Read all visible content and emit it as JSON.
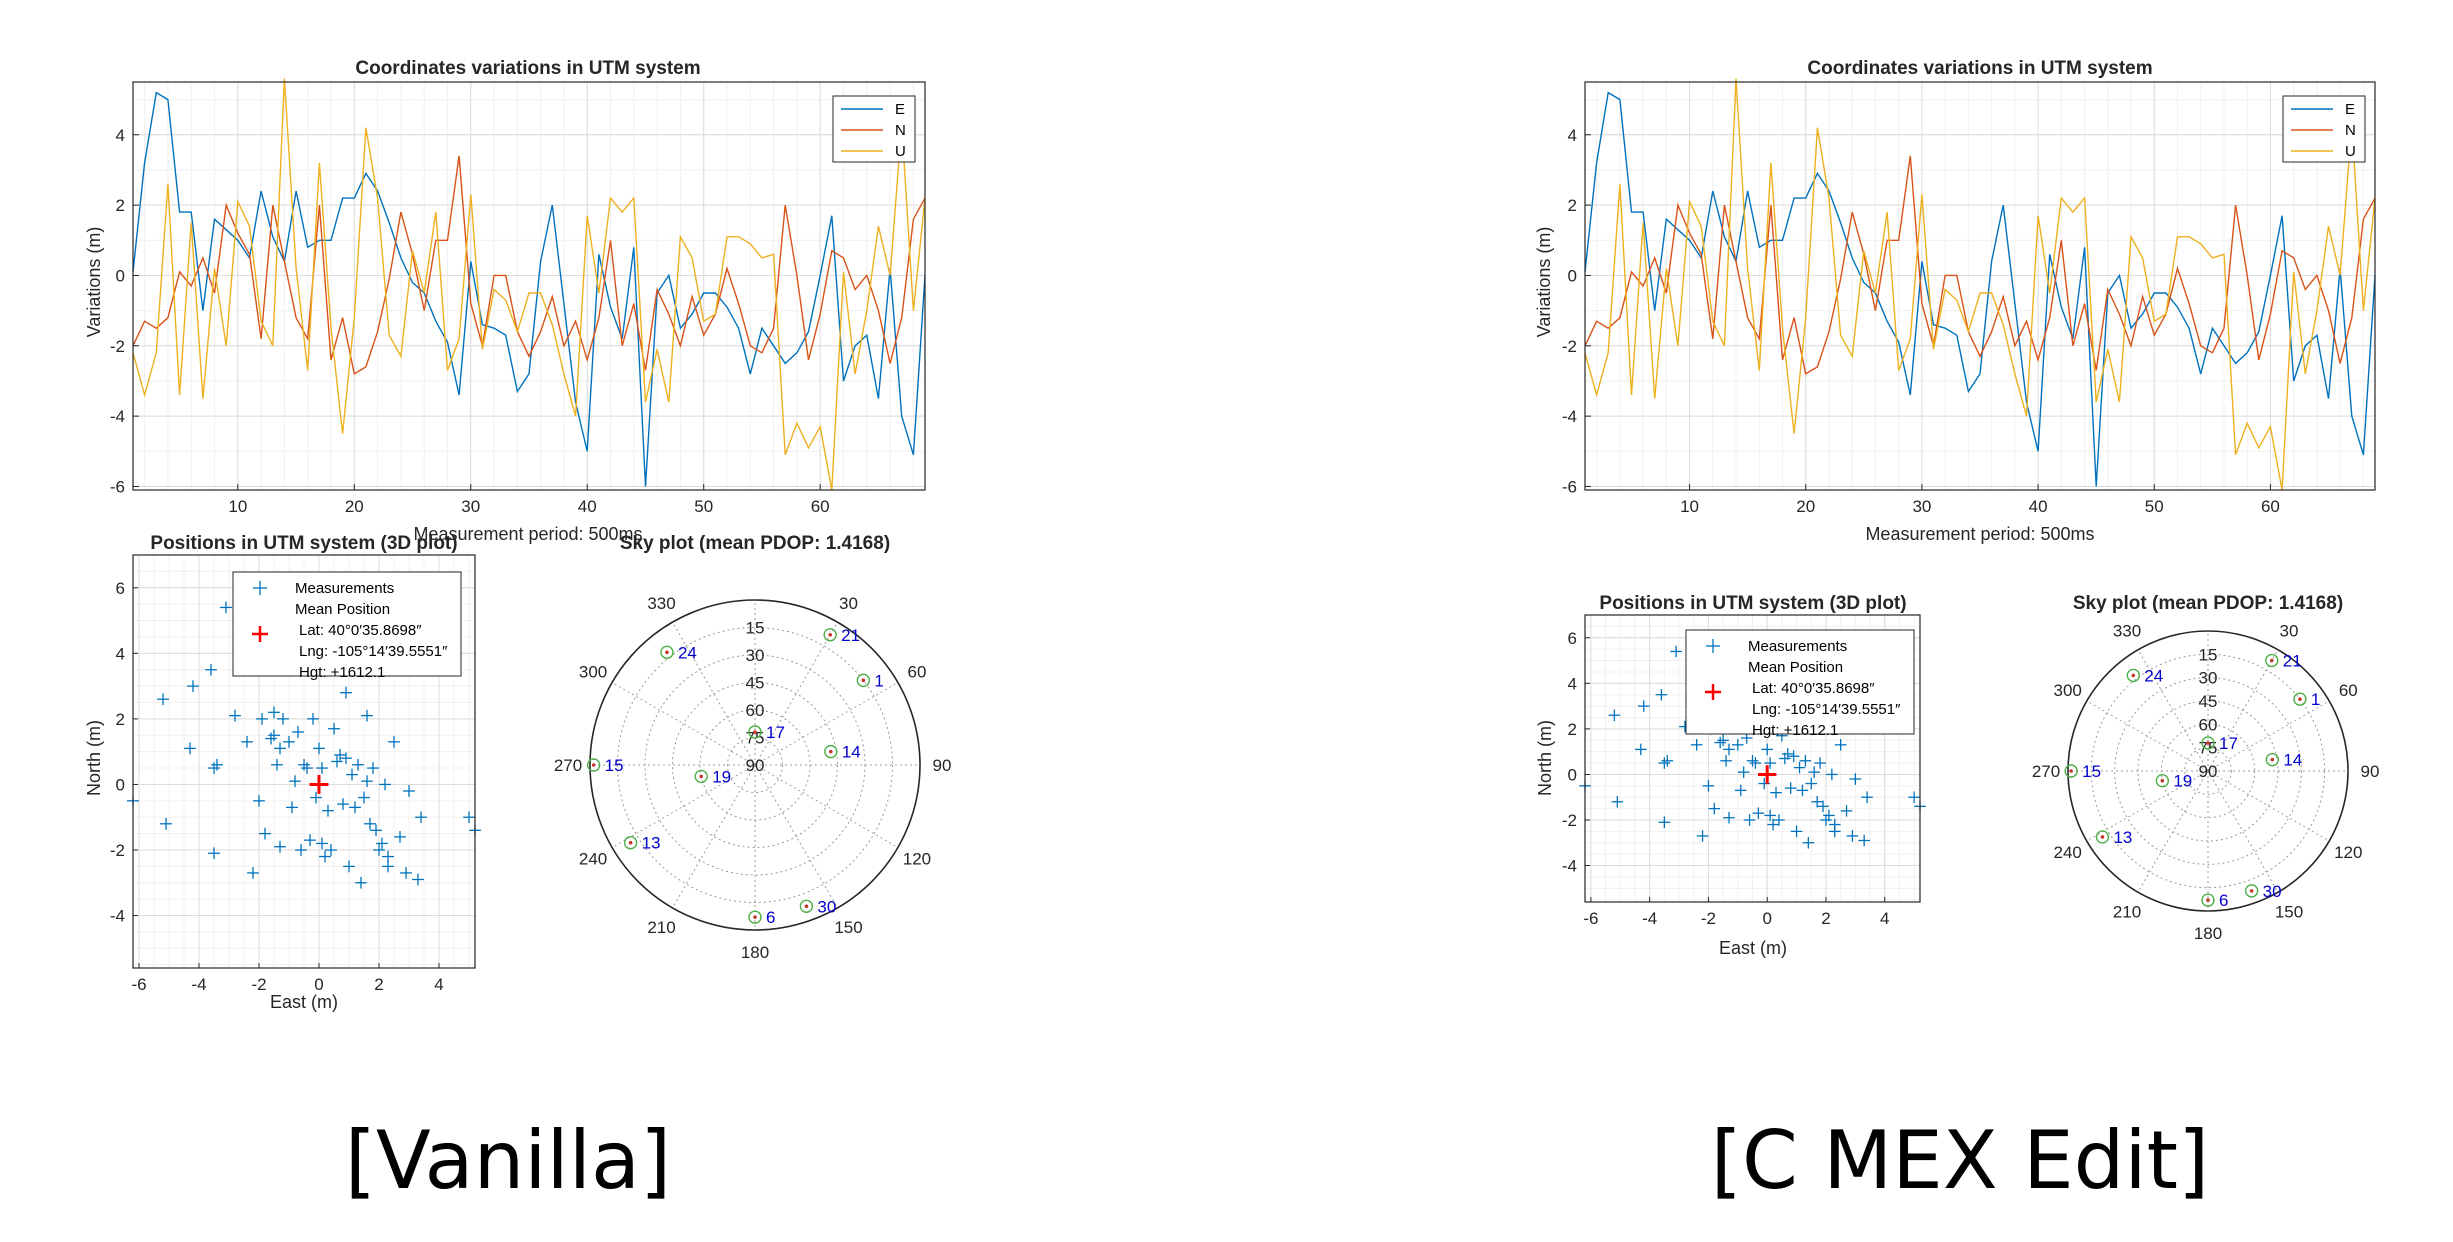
{
  "captions": {
    "left": "[Vanilla]",
    "right": "[C MEX Edit]"
  },
  "colors": {
    "E": "#0072BD",
    "N": "#D95319",
    "U": "#EDB120",
    "mean": "#ff0000",
    "meas": "#0072BD",
    "satlab": "#0000cc"
  },
  "chart_data": [
    {
      "type": "line",
      "title": "Coordinates variations in UTM system",
      "xlabel": "Measurement period: 500ms",
      "ylabel": "Variations (m)",
      "xlim": [
        1,
        69
      ],
      "ylim": [
        -6.1,
        5.5
      ],
      "xticks": [
        10,
        20,
        30,
        40,
        50,
        60
      ],
      "yticks": [
        -6,
        -4,
        -2,
        0,
        2,
        4
      ],
      "legend": [
        "E",
        "N",
        "U"
      ],
      "legend_position": "top-right",
      "series": [
        {
          "name": "E",
          "values": [
            0.1,
            3.2,
            5.2,
            5.0,
            1.8,
            1.8,
            -1.0,
            1.6,
            1.3,
            1.0,
            0.5,
            2.4,
            1.1,
            0.4,
            2.4,
            0.8,
            1.0,
            1.0,
            2.2,
            2.2,
            2.9,
            2.4,
            1.5,
            0.5,
            -0.2,
            -0.5,
            -1.3,
            -1.9,
            -3.4,
            0.4,
            -1.4,
            -1.5,
            -1.7,
            -3.3,
            -2.8,
            0.4,
            2.0,
            -0.8,
            -3.6,
            -5.0,
            0.6,
            -0.9,
            -1.8,
            0.8,
            -6.0,
            -0.5,
            0.0,
            -1.5,
            -1.1,
            -0.5,
            -0.5,
            -0.9,
            -1.5,
            -2.8,
            -1.5,
            -2.0,
            -2.5,
            -2.2,
            -1.6,
            0.0,
            1.7,
            -3.0,
            -2.0,
            -1.7,
            -3.5,
            0.2,
            -4.0,
            -5.1,
            0.0
          ]
        },
        {
          "name": "N",
          "values": [
            -2.0,
            -1.3,
            -1.5,
            -1.2,
            0.1,
            -0.3,
            0.5,
            -0.5,
            2.0,
            1.2,
            0.6,
            -1.8,
            2.0,
            0.4,
            -1.2,
            -1.8,
            2.0,
            -2.4,
            -1.2,
            -2.8,
            -2.6,
            -1.6,
            -0.1,
            1.8,
            0.6,
            -1.0,
            1.0,
            1.0,
            3.4,
            -0.8,
            -2.0,
            0.0,
            0.0,
            -1.6,
            -2.3,
            -1.6,
            -0.6,
            -2.0,
            -1.3,
            -2.4,
            -1.2,
            1.0,
            -2.0,
            -0.8,
            -2.7,
            -0.4,
            -1.1,
            -2.0,
            -0.6,
            -1.7,
            -1.1,
            0.2,
            -0.8,
            -2.0,
            -2.2,
            -1.5,
            2.0,
            0.0,
            -2.4,
            -1.1,
            0.7,
            0.5,
            -0.4,
            0.0,
            -1.0,
            -2.5,
            -1.2,
            1.6,
            2.2
          ]
        },
        {
          "name": "U",
          "values": [
            -2.2,
            -3.4,
            -2.2,
            2.6,
            -3.4,
            1.5,
            -3.5,
            0.2,
            -2.0,
            2.1,
            1.4,
            -1.3,
            -2.0,
            5.6,
            0.2,
            -2.7,
            3.2,
            -1.5,
            -4.5,
            -1.2,
            4.2,
            2.2,
            -1.7,
            -2.3,
            0.7,
            -0.5,
            1.8,
            -2.7,
            -1.8,
            2.3,
            -2.1,
            -0.4,
            -0.7,
            -1.6,
            -0.5,
            -0.5,
            -1.4,
            -2.8,
            -4.0,
            1.7,
            -0.5,
            2.2,
            1.8,
            2.2,
            -3.6,
            -2.1,
            -3.6,
            1.1,
            0.5,
            -1.3,
            -1.1,
            1.1,
            1.1,
            0.9,
            0.5,
            0.6,
            -5.1,
            -4.2,
            -4.9,
            -4.3,
            -6.1,
            0.1,
            -2.8,
            -1.0,
            1.4,
            0.0,
            4.3,
            -1.0,
            2.2
          ]
        }
      ]
    },
    {
      "type": "scatter",
      "title": "Positions in UTM system (3D plot)",
      "xlabel": "East (m)",
      "ylabel": "North (m)",
      "xlim": [
        -6.2,
        5.2
      ],
      "ylim": [
        -5.6,
        7.0
      ],
      "xticks": [
        -6,
        -4,
        -2,
        0,
        2,
        4
      ],
      "yticks": [
        -4,
        -2,
        0,
        2,
        4,
        6
      ],
      "legend": {
        "measurements": "Measurements",
        "mean_heading": "Mean Position",
        "lat": "Lat: 40°0′35.8698″",
        "lng": "Lng: -105°14′39.5551″",
        "hgt": "Hgt: +1612.1"
      },
      "mean_position": {
        "x": 0.0,
        "y": 0.0
      },
      "points": [
        [
          -6.2,
          -0.5
        ],
        [
          -5.2,
          2.6
        ],
        [
          -5.1,
          -1.2
        ],
        [
          -4.3,
          1.1
        ],
        [
          -4.2,
          3.0
        ],
        [
          -3.6,
          3.5
        ],
        [
          -3.5,
          -2.1
        ],
        [
          -3.5,
          0.5
        ],
        [
          -3.4,
          0.6
        ],
        [
          -3.1,
          5.4
        ],
        [
          -2.8,
          2.1
        ],
        [
          -2.4,
          1.3
        ],
        [
          -2.2,
          -2.7
        ],
        [
          -2.0,
          -0.5
        ],
        [
          -1.9,
          2.0
        ],
        [
          -1.8,
          -1.5
        ],
        [
          -1.6,
          1.4
        ],
        [
          -1.5,
          2.2
        ],
        [
          -1.5,
          1.5
        ],
        [
          -1.4,
          0.6
        ],
        [
          -1.3,
          1.1
        ],
        [
          -1.3,
          -1.9
        ],
        [
          -1.2,
          2.0
        ],
        [
          -1.0,
          1.3
        ],
        [
          -0.9,
          -0.7
        ],
        [
          -0.8,
          0.1
        ],
        [
          -0.7,
          1.6
        ],
        [
          -0.6,
          -2.0
        ],
        [
          -0.5,
          0.6
        ],
        [
          -0.4,
          0.5
        ],
        [
          -0.3,
          -1.7
        ],
        [
          -0.2,
          2.0
        ],
        [
          -0.1,
          -0.4
        ],
        [
          0.0,
          1.1
        ],
        [
          0.1,
          -1.8
        ],
        [
          0.1,
          0.5
        ],
        [
          0.2,
          -2.2
        ],
        [
          0.3,
          -0.8
        ],
        [
          0.4,
          -2.0
        ],
        [
          0.5,
          1.7
        ],
        [
          0.6,
          0.7
        ],
        [
          0.7,
          0.9
        ],
        [
          0.8,
          -0.6
        ],
        [
          0.9,
          2.8
        ],
        [
          0.9,
          0.8
        ],
        [
          1.0,
          -2.5
        ],
        [
          1.1,
          0.3
        ],
        [
          1.2,
          -0.7
        ],
        [
          1.3,
          0.6
        ],
        [
          1.4,
          -3.0
        ],
        [
          1.5,
          -0.4
        ],
        [
          1.6,
          0.1
        ],
        [
          1.6,
          2.1
        ],
        [
          1.7,
          -1.2
        ],
        [
          1.8,
          0.5
        ],
        [
          1.9,
          -1.4
        ],
        [
          2.0,
          -2.0
        ],
        [
          2.1,
          -1.8
        ],
        [
          2.2,
          0.0
        ],
        [
          2.3,
          -2.2
        ],
        [
          2.3,
          -2.5
        ],
        [
          2.5,
          1.3
        ],
        [
          2.7,
          -1.6
        ],
        [
          2.9,
          -2.7
        ],
        [
          3.0,
          -0.2
        ],
        [
          3.3,
          -2.9
        ],
        [
          3.4,
          -1.0
        ],
        [
          5.0,
          -1.0
        ],
        [
          5.2,
          -1.4
        ]
      ]
    },
    {
      "type": "scatter",
      "subtype": "polar",
      "title": "Sky plot (mean PDOP: 1.4168)",
      "azimuth_ticks": [
        "30",
        "60",
        "90",
        "120",
        "150",
        "180",
        "210",
        "240",
        "270",
        "300",
        "330"
      ],
      "elevation_ticks": [
        "15",
        "30",
        "45",
        "60",
        "75",
        "90"
      ],
      "satellites": [
        {
          "id": "21",
          "az": 30,
          "el": 8
        },
        {
          "id": "1",
          "az": 52,
          "el": 15
        },
        {
          "id": "24",
          "az": 322,
          "el": 12
        },
        {
          "id": "17",
          "az": 0,
          "el": 72
        },
        {
          "id": "14",
          "az": 80,
          "el": 48
        },
        {
          "id": "15",
          "az": 270,
          "el": 2
        },
        {
          "id": "19",
          "az": 258,
          "el": 60
        },
        {
          "id": "13",
          "az": 238,
          "el": 10
        },
        {
          "id": "6",
          "az": 180,
          "el": 7
        },
        {
          "id": "30",
          "az": 160,
          "el": 8
        }
      ]
    }
  ]
}
